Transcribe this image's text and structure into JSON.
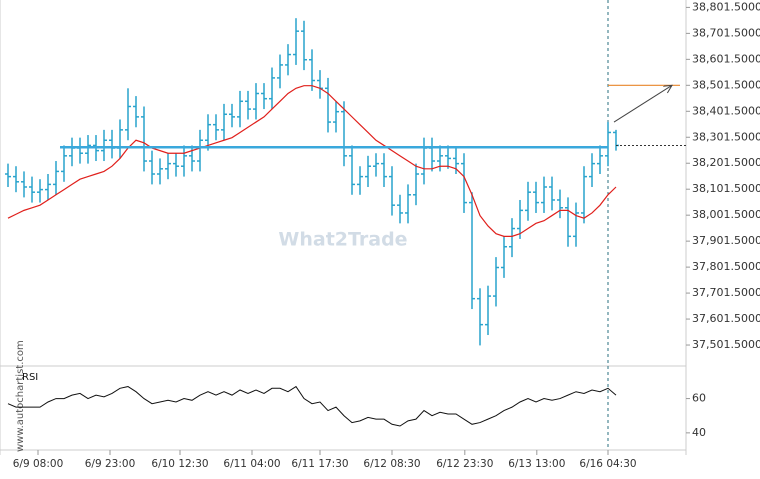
{
  "chart_data": {
    "type": "ohlc",
    "watermark": "What2Trade",
    "source": "www.autochartist.com",
    "ylim": [
      37440,
      38830
    ],
    "yticks": [
      {
        "value": 38801.5,
        "label": "38,801.5000"
      },
      {
        "value": 38701.5,
        "label": "38,701.5000"
      },
      {
        "value": 38601.5,
        "label": "38,601.5000"
      },
      {
        "value": 38501.5,
        "label": "38,501.5000"
      },
      {
        "value": 38401.5,
        "label": "38,401.5000"
      },
      {
        "value": 38301.5,
        "label": "38,301.5000"
      },
      {
        "value": 38201.5,
        "label": "38,201.5000"
      },
      {
        "value": 38101.5,
        "label": "38,101.5000"
      },
      {
        "value": 38001.5,
        "label": "38,001.5000"
      },
      {
        "value": 37901.5,
        "label": "37,901.5000"
      },
      {
        "value": 37801.5,
        "label": "37,801.5000"
      },
      {
        "value": 37701.5,
        "label": "37,701.5000"
      },
      {
        "value": 37601.5,
        "label": "37,601.5000"
      },
      {
        "value": 37501.5,
        "label": "37,501.5000"
      }
    ],
    "xticks": [
      {
        "value": 3.75,
        "label": "6/9 08:00"
      },
      {
        "value": 12.75,
        "label": "6/9 23:00"
      },
      {
        "value": 21.5,
        "label": "6/10 12:30"
      },
      {
        "value": 30.5,
        "label": "6/11 04:00"
      },
      {
        "value": 39,
        "label": "6/11 17:30"
      },
      {
        "value": 48,
        "label": "6/12 08:30"
      },
      {
        "value": 57.1,
        "label": "6/12 23:30"
      },
      {
        "value": 66.1,
        "label": "6/13 13:00"
      },
      {
        "value": 75,
        "label": "6/16 04:30"
      }
    ],
    "color": "#29a3cc",
    "open": [
      38160,
      38150,
      38130,
      38110,
      38090,
      38100,
      38120,
      38170,
      38230,
      38260,
      38240,
      38270,
      38250,
      38290,
      38260,
      38330,
      38420,
      38380,
      38210,
      38160,
      38180,
      38200,
      38190,
      38230,
      38210,
      38290,
      38350,
      38330,
      38390,
      38380,
      38440,
      38410,
      38470,
      38450,
      38530,
      38580,
      38620,
      38710,
      38600,
      38520,
      38490,
      38360,
      38400,
      38230,
      38120,
      38150,
      38190,
      38200,
      38150,
      38040,
      38010,
      38080,
      38160,
      38260,
      38210,
      38230,
      38220,
      38200,
      38050,
      37680,
      37580,
      37690,
      37800,
      37880,
      37950,
      38020,
      38090,
      38050,
      38110,
      38060,
      38030,
      37920,
      38010,
      38150,
      38200,
      38230,
      38320
    ],
    "high": [
      38200,
      38190,
      38170,
      38150,
      38140,
      38160,
      38210,
      38270,
      38300,
      38300,
      38310,
      38310,
      38330,
      38330,
      38370,
      38490,
      38460,
      38420,
      38250,
      38220,
      38240,
      38240,
      38270,
      38270,
      38330,
      38390,
      38390,
      38430,
      38430,
      38480,
      38480,
      38510,
      38510,
      38570,
      38620,
      38660,
      38760,
      38750,
      38640,
      38560,
      38530,
      38440,
      38440,
      38270,
      38190,
      38230,
      38240,
      38240,
      38190,
      38080,
      38120,
      38200,
      38300,
      38300,
      38270,
      38270,
      38260,
      38240,
      38090,
      37720,
      37730,
      37840,
      37920,
      37990,
      38060,
      38130,
      38130,
      38150,
      38150,
      38100,
      38070,
      38050,
      38190,
      38240,
      38270,
      38360,
      38330
    ],
    "low": [
      38110,
      38090,
      38070,
      38050,
      38050,
      38060,
      38080,
      38130,
      38190,
      38200,
      38200,
      38210,
      38210,
      38220,
      38220,
      38290,
      38340,
      38170,
      38120,
      38120,
      38140,
      38150,
      38150,
      38170,
      38170,
      38250,
      38290,
      38290,
      38340,
      38340,
      38370,
      38370,
      38410,
      38410,
      38490,
      38540,
      38580,
      38560,
      38480,
      38450,
      38320,
      38320,
      38190,
      38080,
      38080,
      38110,
      38150,
      38110,
      38000,
      37970,
      37970,
      38040,
      38120,
      38170,
      38170,
      38180,
      38160,
      38010,
      37640,
      37500,
      37540,
      37650,
      37760,
      37840,
      37910,
      37980,
      38010,
      38010,
      38020,
      37990,
      37880,
      37880,
      37970,
      38110,
      38160,
      38190,
      38250
    ],
    "close": [
      38150,
      38130,
      38110,
      38090,
      38100,
      38120,
      38170,
      38230,
      38260,
      38240,
      38270,
      38250,
      38290,
      38260,
      38330,
      38420,
      38380,
      38210,
      38160,
      38180,
      38200,
      38190,
      38230,
      38210,
      38290,
      38350,
      38330,
      38390,
      38380,
      38440,
      38410,
      38470,
      38450,
      38530,
      38580,
      38620,
      38710,
      38600,
      38520,
      38490,
      38360,
      38400,
      38230,
      38120,
      38150,
      38190,
      38200,
      38150,
      38040,
      38010,
      38080,
      38160,
      38260,
      38210,
      38230,
      38220,
      38200,
      38050,
      37680,
      37580,
      37690,
      37800,
      37880,
      37950,
      38020,
      38090,
      38050,
      38110,
      38060,
      38030,
      37920,
      38010,
      38150,
      38200,
      38230,
      38320,
      38270
    ],
    "ma": {
      "color": "#e0201c",
      "values": [
        37990,
        38005,
        38020,
        38030,
        38040,
        38060,
        38080,
        38100,
        38120,
        38140,
        38150,
        38160,
        38170,
        38190,
        38220,
        38260,
        38290,
        38280,
        38260,
        38250,
        38240,
        38240,
        38240,
        38250,
        38260,
        38270,
        38280,
        38290,
        38300,
        38320,
        38340,
        38360,
        38380,
        38410,
        38440,
        38470,
        38490,
        38500,
        38500,
        38490,
        38470,
        38440,
        38410,
        38380,
        38350,
        38320,
        38290,
        38270,
        38250,
        38230,
        38210,
        38190,
        38180,
        38180,
        38190,
        38190,
        38180,
        38150,
        38080,
        38000,
        37960,
        37930,
        37920,
        37920,
        37930,
        37950,
        37970,
        37980,
        38000,
        38020,
        38020,
        38000,
        37990,
        38010,
        38040,
        38080,
        38110
      ]
    },
    "level": {
      "value": 38263,
      "color": "#3aa8dc"
    },
    "target": {
      "value": 38501.5,
      "color": "#e8862a"
    },
    "rsi": {
      "name": "RSI",
      "ylim": [
        30,
        79
      ],
      "yticks": [
        60,
        40
      ],
      "values": [
        57,
        55,
        55,
        55,
        55,
        58,
        60,
        60,
        62,
        63,
        60,
        62,
        61,
        63,
        66,
        67,
        64,
        60,
        57,
        58,
        59,
        58,
        60,
        59,
        62,
        64,
        62,
        64,
        62,
        65,
        63,
        65,
        63,
        66,
        66,
        64,
        67,
        60,
        57,
        58,
        53,
        55,
        50,
        46,
        47,
        49,
        48,
        48,
        45,
        44,
        47,
        48,
        53,
        50,
        52,
        51,
        51,
        48,
        45,
        46,
        48,
        50,
        53,
        55,
        58,
        60,
        58,
        60,
        59,
        60,
        62,
        64,
        63,
        65,
        64,
        66,
        62
      ]
    }
  }
}
